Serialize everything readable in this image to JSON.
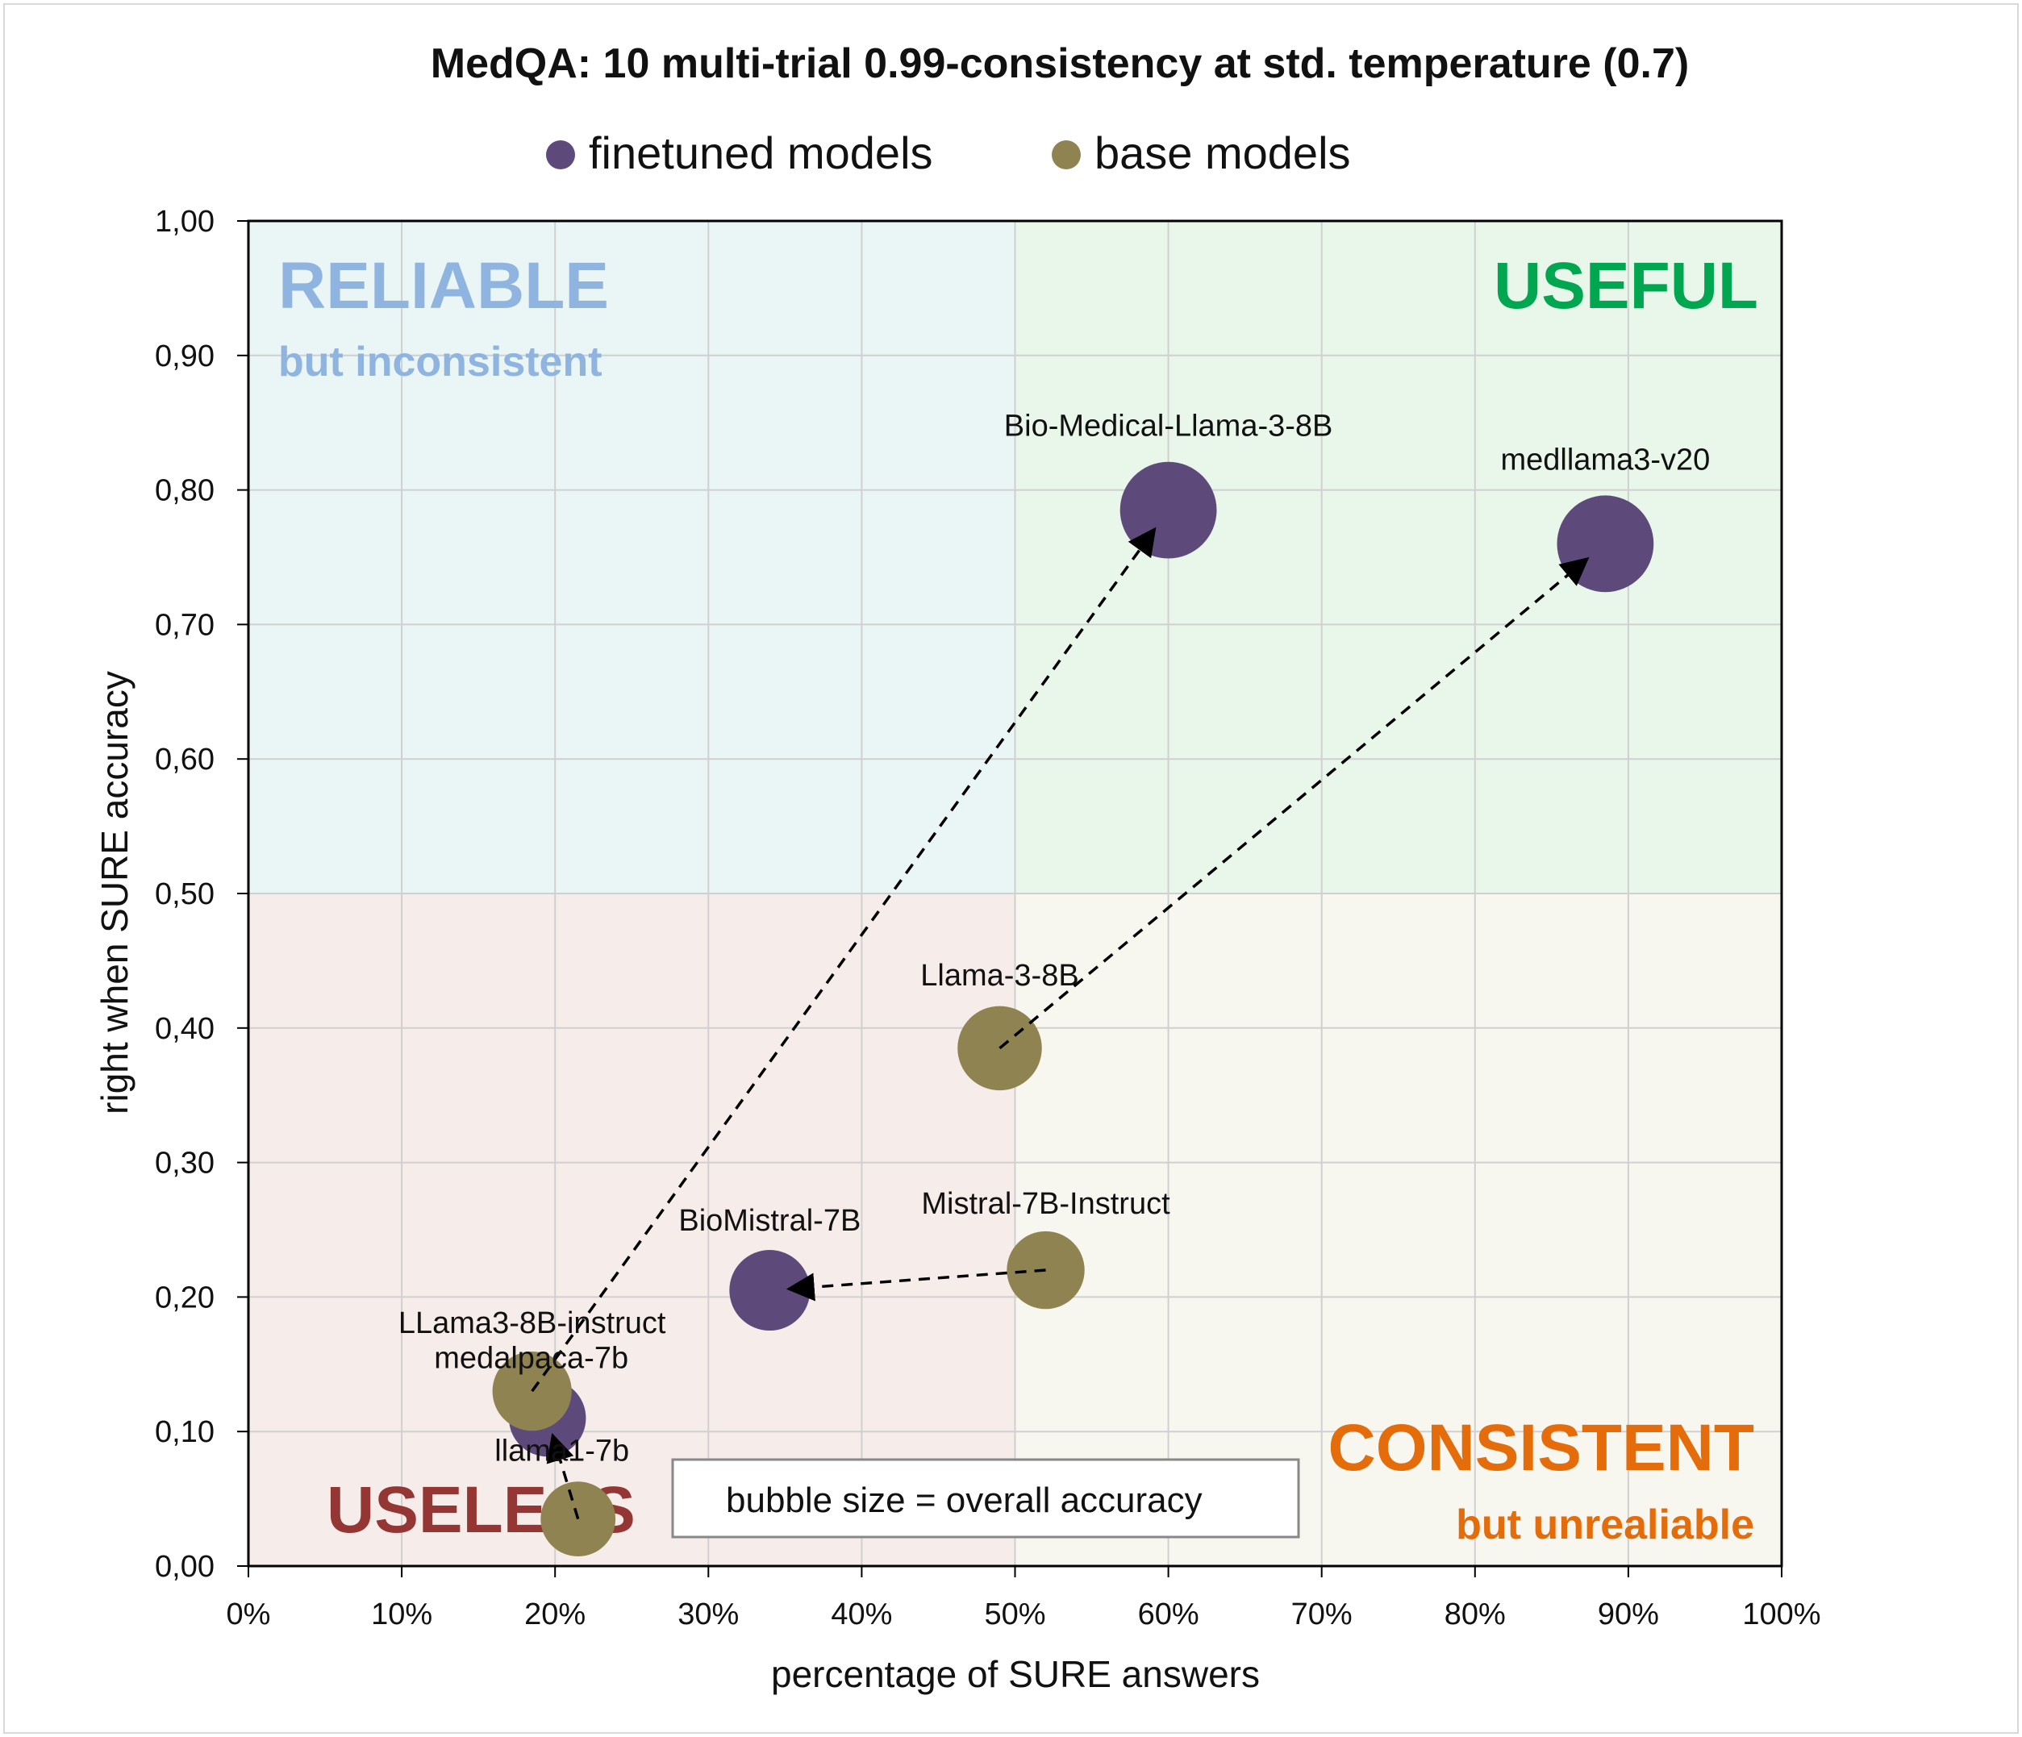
{
  "chart_data": {
    "type": "scatter",
    "title": "MedQA: 10 multi-trial 0.99-consistency at std. temperature (0.7)",
    "xlabel": "percentage of SURE answers",
    "ylabel": "right when SURE accuracy",
    "xlim": [
      0,
      1
    ],
    "ylim": [
      0,
      1
    ],
    "x_ticks": [
      "0%",
      "10%",
      "20%",
      "30%",
      "40%",
      "50%",
      "60%",
      "70%",
      "80%",
      "90%",
      "100%"
    ],
    "y_ticks": [
      "0,00",
      "0,10",
      "0,20",
      "0,30",
      "0,40",
      "0,50",
      "0,60",
      "0,70",
      "0,80",
      "0,90",
      "1,00"
    ],
    "grid": true,
    "legend_position": "top",
    "series": [
      {
        "name": "finetuned models",
        "color": "#5e4a7a",
        "points": [
          {
            "label": "Bio-Medical-Llama-3-8B",
            "x": 0.6,
            "y": 0.785,
            "size": 0.62
          },
          {
            "label": "medllama3-v20",
            "x": 0.885,
            "y": 0.76,
            "size": 0.62
          },
          {
            "label": "BioMistral-7B",
            "x": 0.34,
            "y": 0.205,
            "size": 0.4
          },
          {
            "label": "medalpaca-7b",
            "x": 0.195,
            "y": 0.11,
            "size": 0.35
          }
        ]
      },
      {
        "name": "base models",
        "color": "#8f8451",
        "points": [
          {
            "label": "Llama-3-8B",
            "x": 0.49,
            "y": 0.385,
            "size": 0.45
          },
          {
            "label": "Mistral-7B-Instruct",
            "x": 0.52,
            "y": 0.22,
            "size": 0.36
          },
          {
            "label": "LLama3-8B-instruct",
            "x": 0.185,
            "y": 0.13,
            "size": 0.38
          },
          {
            "label": "llama1-7b",
            "x": 0.215,
            "y": 0.035,
            "size": 0.32
          }
        ]
      }
    ],
    "arrows": [
      {
        "from": "Llama-3-8B",
        "to": "medllama3-v20"
      },
      {
        "from": "LLama3-8B-instruct",
        "to": "Bio-Medical-Llama-3-8B"
      },
      {
        "from": "Mistral-7B-Instruct",
        "to": "BioMistral-7B"
      },
      {
        "from": "llama1-7b",
        "to": "medalpaca-7b"
      }
    ],
    "quadrants": [
      {
        "title": "RELIABLE",
        "subtitle": "but inconsistent",
        "color": "#8eb4df",
        "background": "#eaf5f6"
      },
      {
        "title": "USEFUL",
        "subtitle": "",
        "color": "#00a650",
        "background": "#e9f6ea"
      },
      {
        "title": "USELESS",
        "subtitle": "",
        "color": "#943634",
        "background": "#f6ecea"
      },
      {
        "title": "CONSISTENT",
        "subtitle": "but unrealiable",
        "color": "#e46c0a",
        "background": "#f7f6ef"
      }
    ],
    "annotation": "bubble size = overall accuracy"
  }
}
